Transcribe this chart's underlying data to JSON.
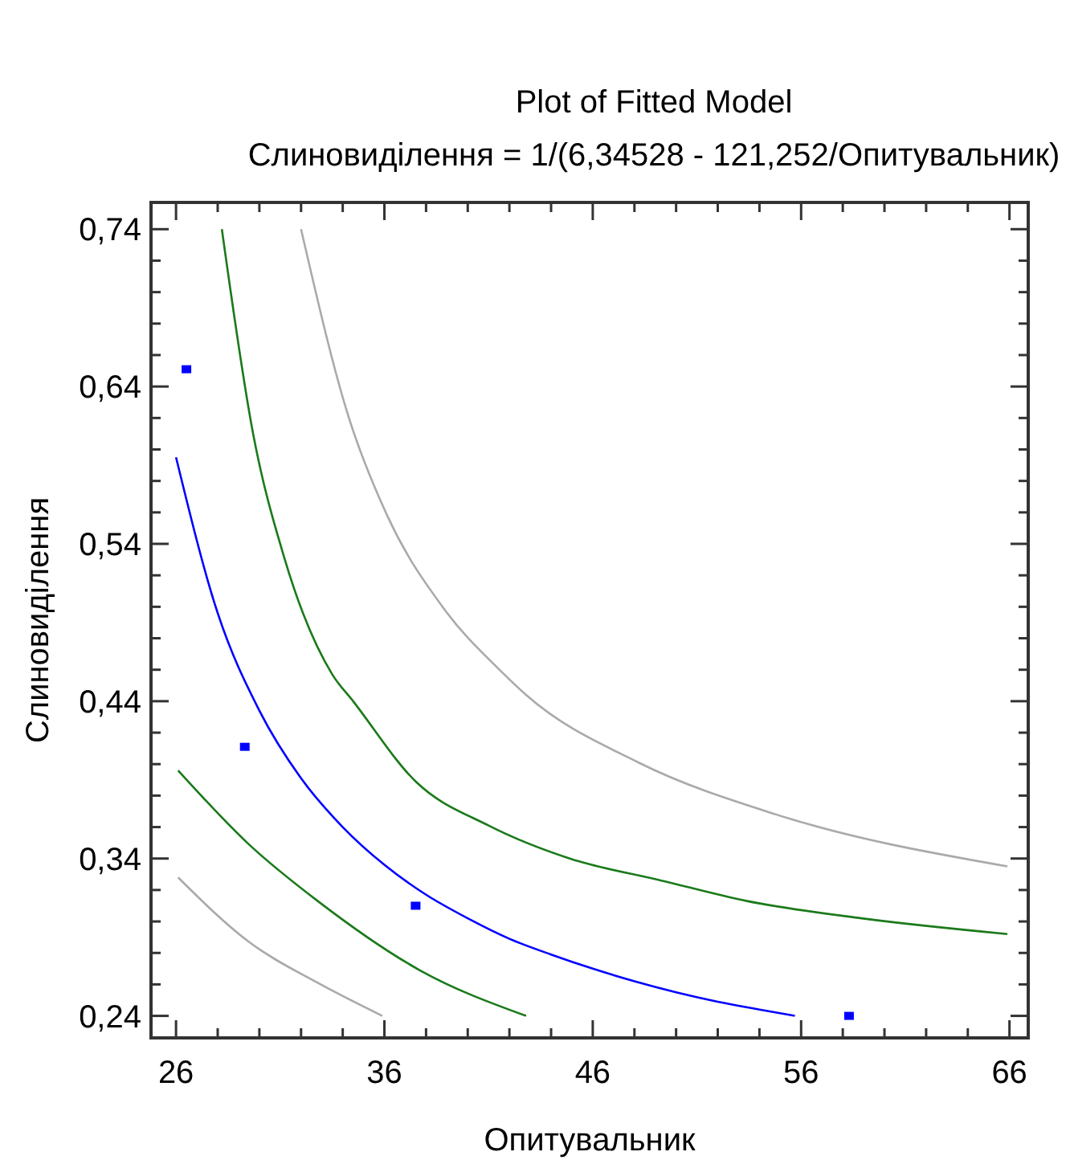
{
  "chart_data": {
    "type": "line",
    "title": "Plot of Fitted Model",
    "subtitle": "Слиновиділення = 1/(6,34528 - 121,252/Опитувальник)",
    "xlabel": "Опитувальник",
    "ylabel": "Слиновиділення",
    "xlim": [
      24.8,
      66.9
    ],
    "ylim": [
      0.226,
      0.757
    ],
    "xticks": [
      26,
      {
        "value": 28,
        "label": null
      },
      {
        "value": 30,
        "label": null
      },
      {
        "value": 32,
        "label": null
      },
      {
        "value": 34,
        "label": null
      },
      36,
      {
        "value": 38,
        "label": null
      },
      {
        "value": 40,
        "label": null
      },
      {
        "value": 42,
        "label": null
      },
      {
        "value": 44,
        "label": null
      },
      46,
      {
        "value": 48,
        "label": null
      },
      {
        "value": 50,
        "label": null
      },
      {
        "value": 52,
        "label": null
      },
      {
        "value": 54,
        "label": null
      },
      56,
      {
        "value": 58,
        "label": null
      },
      {
        "value": 60,
        "label": null
      },
      {
        "value": 62,
        "label": null
      },
      {
        "value": 64,
        "label": null
      },
      66
    ],
    "yticks": [
      {
        "value": 0.24,
        "label": "0,24"
      },
      {
        "value": 0.26,
        "label": null
      },
      {
        "value": 0.28,
        "label": null
      },
      {
        "value": 0.3,
        "label": null
      },
      {
        "value": 0.32,
        "label": null
      },
      {
        "value": 0.34,
        "label": "0,34"
      },
      {
        "value": 0.36,
        "label": null
      },
      {
        "value": 0.38,
        "label": null
      },
      {
        "value": 0.4,
        "label": null
      },
      {
        "value": 0.42,
        "label": null
      },
      {
        "value": 0.44,
        "label": "0,44"
      },
      {
        "value": 0.46,
        "label": null
      },
      {
        "value": 0.48,
        "label": null
      },
      {
        "value": 0.5,
        "label": null
      },
      {
        "value": 0.52,
        "label": null
      },
      {
        "value": 0.54,
        "label": "0,54"
      },
      {
        "value": 0.56,
        "label": null
      },
      {
        "value": 0.58,
        "label": null
      },
      {
        "value": 0.6,
        "label": null
      },
      {
        "value": 0.62,
        "label": null
      },
      {
        "value": 0.64,
        "label": "0,64"
      },
      {
        "value": 0.66,
        "label": null
      },
      {
        "value": 0.68,
        "label": null
      },
      {
        "value": 0.7,
        "label": null
      },
      {
        "value": 0.72,
        "label": null
      },
      {
        "value": 0.74,
        "label": "0,74"
      }
    ],
    "grid": false,
    "line_style": "solid",
    "series": [
      {
        "color": "#0000ff",
        "x": [
          26,
          28,
          30,
          32,
          34,
          36,
          38,
          40,
          42,
          44,
          46,
          48,
          50,
          52,
          54,
          55.7
        ],
        "values": [
          0.595,
          0.496,
          0.434,
          0.391,
          0.36,
          0.336,
          0.317,
          0.302,
          0.289,
          0.279,
          0.27,
          0.262,
          0.255,
          0.249,
          0.244,
          0.24
        ]
      },
      {
        "color": "#1a7a1a",
        "x": [
          28.2,
          29.7,
          31.2,
          33.5,
          34.5,
          37.5,
          41,
          44.9,
          49.3,
          53.4,
          58.9,
          65.9
        ],
        "values": [
          0.74,
          0.61,
          0.531,
          0.457,
          0.44,
          0.389,
          0.361,
          0.34,
          0.326,
          0.313,
          0.302,
          0.292
        ]
      },
      {
        "color": "#1a7a1a",
        "x": [
          26.1,
          29.5,
          32.8,
          37.7,
          42.8
        ],
        "values": [
          0.396,
          0.349,
          0.313,
          0.269,
          0.24
        ]
      },
      {
        "color": "#aaaaaa",
        "x": [
          32,
          34.3,
          36.1,
          38.9,
          41.6,
          42.8,
          48.2,
          54.8,
          65.9
        ],
        "values": [
          0.74,
          0.62,
          0.559,
          0.498,
          0.459,
          0.444,
          0.401,
          0.368,
          0.335
        ]
      },
      {
        "color": "#aaaaaa",
        "x": [
          26.1,
          29.5,
          32.8,
          35.9
        ],
        "values": [
          0.328,
          0.287,
          0.261,
          0.24
        ]
      },
      {
        "type": "scatter",
        "marker": "square",
        "color": "#0000ff",
        "x": [
          26.5,
          29.3,
          37.5,
          58.3
        ],
        "values": [
          0.651,
          0.411,
          0.31,
          0.24
        ]
      }
    ]
  }
}
